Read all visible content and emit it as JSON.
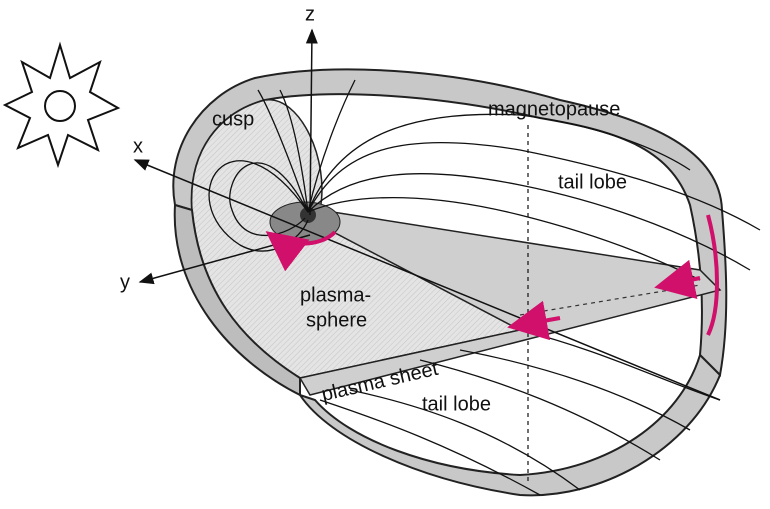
{
  "labels": {
    "z": "z",
    "x": "x",
    "y": "y",
    "cusp": "cusp",
    "magnetopause": "magnetopause",
    "tail_lobe_upper": "tail lobe",
    "plasmasphere": [
      "plasma-",
      "sphere"
    ],
    "plasma_sheet": "plasma sheet",
    "tail_lobe_lower": "tail lobe"
  }
}
